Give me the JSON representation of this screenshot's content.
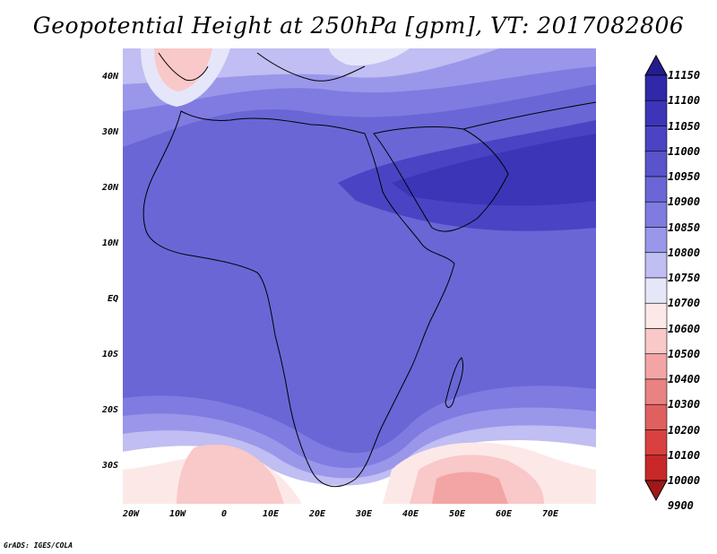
{
  "title": "Geopotential Height at 250hPa [gpm], VT: 2017082806",
  "footer": "GrADS: IGES/COLA",
  "map": {
    "lat_labels": [
      "40N",
      "30N",
      "20N",
      "10N",
      "EQ",
      "10S",
      "20S",
      "30S"
    ],
    "lon_labels": [
      "20W",
      "10W",
      "0",
      "10E",
      "20E",
      "30E",
      "40E",
      "50E",
      "60E",
      "70E"
    ]
  },
  "colorbar": {
    "levels": [
      "11150",
      "11100",
      "11050",
      "11000",
      "10950",
      "10900",
      "10850",
      "10800",
      "10750",
      "10700",
      "10600",
      "10500",
      "10400",
      "10300",
      "10200",
      "10100",
      "10000",
      "9900"
    ],
    "colors": [
      "#241c8c",
      "#2f28a8",
      "#3c35b8",
      "#4a44c4",
      "#5953cc",
      "#6a66d6",
      "#7f7be0",
      "#9a97ea",
      "#c0bef2",
      "#e6e6fa",
      "#fde8e8",
      "#f9c8c8",
      "#f3a5a5",
      "#ea8282",
      "#e06060",
      "#d94141",
      "#c82828",
      "#a01818"
    ]
  }
}
